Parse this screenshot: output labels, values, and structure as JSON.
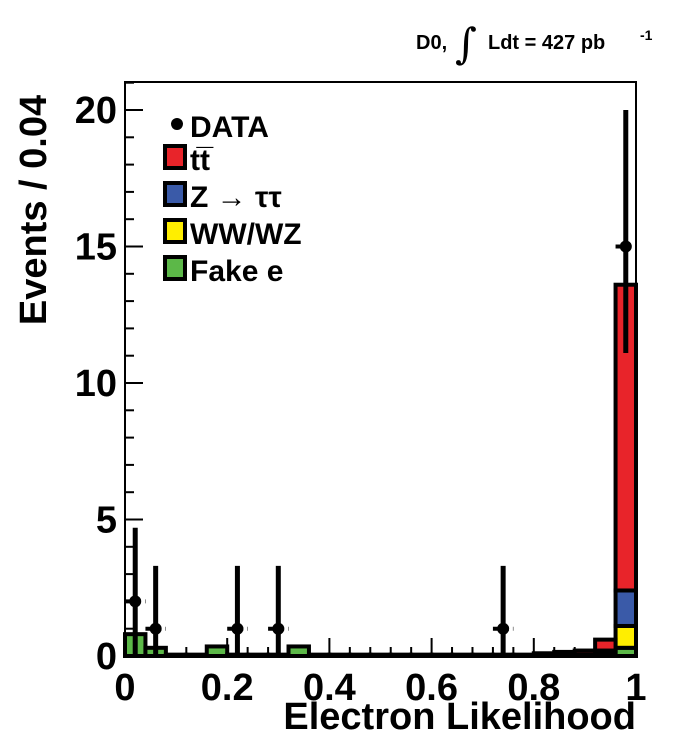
{
  "chart_data": {
    "type": "bar",
    "stacked": true,
    "header": {
      "prefix": "D0,",
      "integral": "∫",
      "text": "Ldt = 427 pb",
      "superscript": "-1"
    },
    "xlabel": "Electron Likelihood",
    "ylabel": "Events / 0.04",
    "xlim": [
      0,
      1
    ],
    "ylim": [
      0,
      20
    ],
    "x_ticks": [
      0,
      0.2,
      0.4,
      0.6,
      0.8,
      1
    ],
    "x_tick_labels": [
      "0",
      "0.2",
      "0.4",
      "0.6",
      "0.8",
      "1"
    ],
    "y_ticks": [
      0,
      5,
      10,
      15,
      20
    ],
    "y_tick_labels": [
      "0",
      "5",
      "10",
      "15",
      "20"
    ],
    "bin_width": 0.04,
    "bin_edges": [
      0,
      0.04,
      0.08,
      0.12,
      0.16,
      0.2,
      0.24,
      0.28,
      0.32,
      0.36,
      0.4,
      0.44,
      0.48,
      0.52,
      0.56,
      0.6,
      0.64,
      0.68,
      0.72,
      0.76,
      0.8,
      0.84,
      0.88,
      0.92,
      0.96,
      1.0
    ],
    "legend": {
      "position": "top-left",
      "data_label": "DATA",
      "entries": [
        {
          "label": "tt̅",
          "color": "#e8242a"
        },
        {
          "label": "Z → ττ",
          "color": "#3a5aa8"
        },
        {
          "label": "WW/WZ",
          "color": "#ffee00"
        },
        {
          "label": "Fake e",
          "color": "#5cb848"
        }
      ]
    },
    "series": [
      {
        "name": "Fake e",
        "color": "#5cb848",
        "values": [
          0.8,
          0.3,
          0.05,
          0.05,
          0.35,
          0.05,
          0.05,
          0.05,
          0.35,
          0.05,
          0.05,
          0.05,
          0.05,
          0.05,
          0.05,
          0.05,
          0.05,
          0.05,
          0.05,
          0.05,
          0.05,
          0.05,
          0.05,
          0.1,
          0.3
        ]
      },
      {
        "name": "WW/WZ",
        "color": "#ffee00",
        "values": [
          0,
          0,
          0,
          0,
          0,
          0,
          0,
          0,
          0,
          0,
          0,
          0,
          0,
          0,
          0,
          0,
          0,
          0,
          0,
          0,
          0,
          0,
          0,
          0.05,
          0.8
        ]
      },
      {
        "name": "Z → ττ",
        "color": "#3a5aa8",
        "values": [
          0,
          0,
          0,
          0,
          0,
          0,
          0,
          0,
          0,
          0,
          0,
          0,
          0,
          0,
          0,
          0,
          0,
          0,
          0,
          0,
          0,
          0,
          0,
          0.05,
          1.3
        ]
      },
      {
        "name": "tt̅",
        "color": "#e8242a",
        "values": [
          0,
          0,
          0,
          0,
          0,
          0,
          0,
          0,
          0,
          0,
          0,
          0,
          0,
          0,
          0,
          0,
          0,
          0,
          0,
          0,
          0.05,
          0.1,
          0.15,
          0.4,
          11.2
        ]
      }
    ],
    "data_points": [
      {
        "x": 0.02,
        "y": 2,
        "yerr_low": 2,
        "yerr_high": 2.7
      },
      {
        "x": 0.06,
        "y": 1,
        "yerr_low": 1,
        "yerr_high": 2.3
      },
      {
        "x": 0.22,
        "y": 1,
        "yerr_low": 1,
        "yerr_high": 2.3
      },
      {
        "x": 0.3,
        "y": 1,
        "yerr_low": 1,
        "yerr_high": 2.3
      },
      {
        "x": 0.74,
        "y": 1,
        "yerr_low": 1,
        "yerr_high": 2.3
      },
      {
        "x": 0.98,
        "y": 15,
        "yerr_low": 3.9,
        "yerr_high": 5
      }
    ]
  }
}
